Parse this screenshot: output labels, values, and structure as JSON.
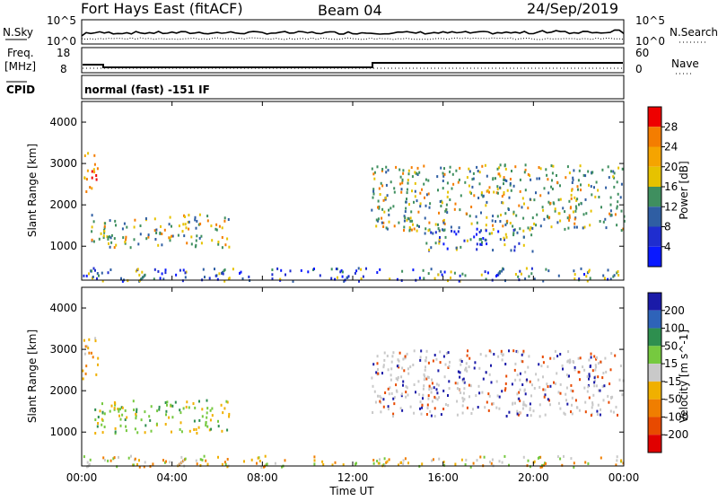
{
  "header": {
    "station": "Fort Hays East (fitACF)",
    "beam": "Beam 04",
    "date": "24/Sep/2019"
  },
  "noise_panel": {
    "left_label": "N.Sky",
    "left_ticks": [
      "10^5",
      "10^0"
    ],
    "right_label": "N.Search",
    "right_ticks": [
      "10^5",
      "10^0"
    ]
  },
  "freq_panel": {
    "left_label_line1": "Freq.",
    "left_label_line2": "[MHz]",
    "left_ticks": [
      "18",
      "8"
    ],
    "right_label": "Nave",
    "right_ticks": [
      "60",
      "0"
    ]
  },
  "cpid": {
    "label": "CPID",
    "value": "normal (fast) -151 IF"
  },
  "x_axis": {
    "title": "Time UT",
    "ticks": [
      "00:00",
      "04:00",
      "08:00",
      "12:00",
      "16:00",
      "20:00",
      "00:00"
    ]
  },
  "chart_data": [
    {
      "type": "heatmap",
      "quantity": "Power",
      "ylabel": "Slant Range [km]",
      "colorbar_label": "Power [dB]",
      "colorbar_ticks": [
        "28",
        "24",
        "20",
        "16",
        "12",
        "8",
        "4"
      ],
      "colorbar_colors": [
        "#ee0000",
        "#f47d00",
        "#f5a400",
        "#e6c200",
        "#3f8f5f",
        "#2f5ea3",
        "#1f2dcf",
        "#0a19ff"
      ],
      "yticks": [
        "4000",
        "3000",
        "2000",
        "1000"
      ],
      "ylim": [
        180,
        4500
      ],
      "xlim_hours": [
        0,
        24
      ],
      "regions": [
        {
          "t0": 0.0,
          "t1": 0.7,
          "r0": 2300,
          "r1": 3300,
          "level": "high"
        },
        {
          "t0": 0.4,
          "t1": 6.5,
          "r0": 1000,
          "r1": 1800,
          "level": "medium"
        },
        {
          "t0": 0.0,
          "t1": 24.0,
          "r0": 180,
          "r1": 500,
          "level": "low"
        },
        {
          "t0": 12.8,
          "t1": 24.0,
          "r0": 1400,
          "r1": 3000,
          "level": "medium"
        },
        {
          "t0": 15.0,
          "t1": 20.0,
          "r0": 900,
          "r1": 1500,
          "level": "low"
        }
      ]
    },
    {
      "type": "heatmap",
      "quantity": "Velocity",
      "ylabel": "Slant Range [km]",
      "colorbar_label": "Velocity [m s^-1]",
      "colorbar_ticks": [
        "200",
        "100",
        "50",
        "15",
        "-15",
        "-50",
        "-100",
        "-200"
      ],
      "colorbar_colors": [
        "#1a1aa8",
        "#2e63b9",
        "#2e8f4f",
        "#76c93f",
        "#c9c9c9",
        "#f0b000",
        "#f07e00",
        "#e84a00",
        "#e00000"
      ],
      "yticks": [
        "4000",
        "3000",
        "2000",
        "1000"
      ],
      "ylim": [
        180,
        4500
      ],
      "xlim_hours": [
        0,
        24
      ],
      "regions": [
        {
          "t0": 0.0,
          "t1": 0.7,
          "r0": 2300,
          "r1": 3300,
          "level": "negative"
        },
        {
          "t0": 0.4,
          "t1": 6.5,
          "r0": 1000,
          "r1": 1800,
          "level": "positive"
        },
        {
          "t0": 0.0,
          "t1": 24.0,
          "r0": 180,
          "r1": 450,
          "level": "mixed"
        },
        {
          "t0": 12.8,
          "t1": 24.0,
          "r0": 1400,
          "r1": 3000,
          "level": "near-zero"
        }
      ]
    }
  ]
}
